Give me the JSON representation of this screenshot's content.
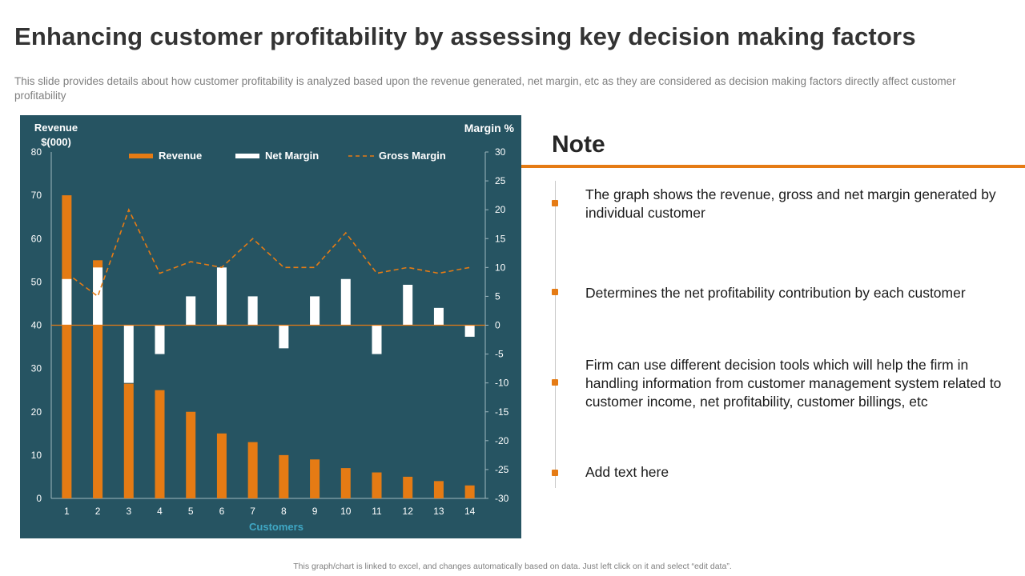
{
  "page": {
    "title": "Enhancing customer profitability by assessing key decision making factors",
    "subtitle": "This slide provides details about how customer profitability is analyzed based upon the revenue generated, net margin, etc as they are considered as decision making factors directly affect customer profitability",
    "footer": "This graph/chart is linked to excel,  and changes automatically based on data. Just left click on it and select “edit data”."
  },
  "note": {
    "heading": "Note",
    "items": [
      "The graph shows the revenue, gross and net margin generated by individual customer",
      "Determines the net profitability contribution by each customer",
      "Firm can use different decision tools which will help the firm in handling information from customer management system related to customer income, net profitability, customer billings, etc",
      "Add text here"
    ]
  },
  "colors": {
    "panel": "#265462",
    "revenue": "#e57b14",
    "net_margin": "#ffffff",
    "gross_margin": "#e57b14",
    "axis_text": "#ffffff",
    "xlabel": "#3fa7c4"
  },
  "chart_data": {
    "type": "bar",
    "categories": [
      "1",
      "2",
      "3",
      "4",
      "5",
      "6",
      "7",
      "8",
      "9",
      "10",
      "11",
      "12",
      "13",
      "14"
    ],
    "xlabel": "Customers",
    "ylabel": "Revenue $(000)",
    "y2label": "Margin %",
    "ylim": [
      0,
      80
    ],
    "y2lim": [
      -30,
      30
    ],
    "yticks": [
      0,
      10,
      20,
      30,
      40,
      50,
      60,
      70,
      80
    ],
    "y2ticks": [
      30,
      25,
      20,
      15,
      10,
      5,
      0,
      -5,
      -10,
      -15,
      -20,
      -25,
      -30
    ],
    "grid": false,
    "legend_position": "top",
    "series": [
      {
        "name": "Revenue",
        "kind": "bar",
        "axis": "left",
        "values": [
          70,
          55,
          26.5,
          25,
          20,
          15,
          13,
          10,
          9,
          7,
          6,
          5,
          4,
          3
        ]
      },
      {
        "name": "Net Margin",
        "kind": "bar",
        "axis": "right",
        "values": [
          8,
          10,
          -10,
          -5,
          5,
          10,
          5,
          -4,
          5,
          8,
          -5,
          7,
          3,
          -2
        ]
      },
      {
        "name": "Gross Margin",
        "kind": "dashed-line",
        "axis": "right",
        "values": [
          9,
          5,
          20,
          9,
          11,
          10,
          15,
          10,
          10,
          16,
          9,
          10,
          9,
          10
        ]
      }
    ]
  }
}
